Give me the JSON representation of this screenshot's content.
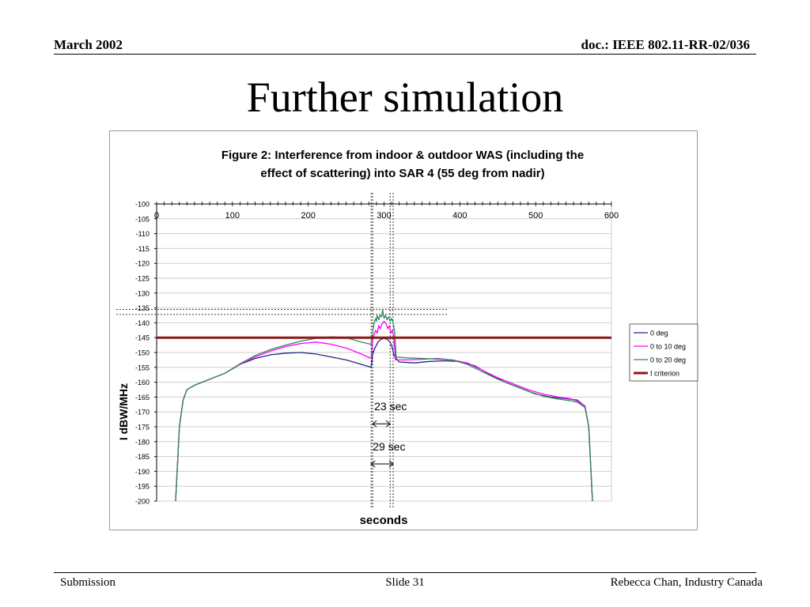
{
  "header": {
    "date": "March 2002",
    "doc": "doc.: IEEE 802.11-RR-02/036"
  },
  "slide": {
    "title": "Further simulation"
  },
  "footer": {
    "submission": "Submission",
    "slide_number": "Slide 31",
    "author": "Rebecca Chan, Industry Canada"
  },
  "chart_data": {
    "type": "line",
    "title_line1": "Figure 2:  Interference from indoor & outdoor WAS (including the",
    "title_line2": "effect of scattering) into SAR 4 (55 deg from nadir)",
    "xlabel": "seconds",
    "ylabel": "I dBW/MHz",
    "xlim": [
      0,
      600
    ],
    "ylim": [
      -200,
      -100
    ],
    "x_ticks": [
      "0",
      "100",
      "200",
      "300",
      "400",
      "500",
      "600"
    ],
    "y_ticks": [
      "-100",
      "-105",
      "-110",
      "-115",
      "-120",
      "-125",
      "-130",
      "-135",
      "-140",
      "-145",
      "-150",
      "-155",
      "-160",
      "-165",
      "-170",
      "-175",
      "-180",
      "-185",
      "-190",
      "-195",
      "-200"
    ],
    "grid": true,
    "legend_position": "right",
    "series": [
      {
        "name": "0 deg",
        "color": "#1c2a7a",
        "points": [
          [
            25,
            -200
          ],
          [
            30,
            -175
          ],
          [
            35,
            -166
          ],
          [
            40,
            -162.5
          ],
          [
            50,
            -161
          ],
          [
            70,
            -159
          ],
          [
            90,
            -157
          ],
          [
            110,
            -154
          ],
          [
            130,
            -152
          ],
          [
            150,
            -150.8
          ],
          [
            170,
            -150.2
          ],
          [
            190,
            -150
          ],
          [
            210,
            -150.5
          ],
          [
            230,
            -151.5
          ],
          [
            250,
            -152.5
          ],
          [
            270,
            -154
          ],
          [
            283,
            -155
          ],
          [
            285,
            -150.5
          ],
          [
            288,
            -148.5
          ],
          [
            292,
            -146.5
          ],
          [
            296,
            -145.5
          ],
          [
            300,
            -145.3
          ],
          [
            304,
            -145.5
          ],
          [
            308,
            -146.5
          ],
          [
            311,
            -148.5
          ],
          [
            313,
            -151
          ],
          [
            320,
            -153.2
          ],
          [
            340,
            -153.5
          ],
          [
            360,
            -153
          ],
          [
            380,
            -152.8
          ],
          [
            400,
            -153
          ],
          [
            420,
            -154.5
          ],
          [
            440,
            -157.5
          ],
          [
            460,
            -160
          ],
          [
            480,
            -162
          ],
          [
            500,
            -164
          ],
          [
            520,
            -165
          ],
          [
            540,
            -165.5
          ],
          [
            555,
            -166
          ],
          [
            565,
            -168
          ],
          [
            570,
            -175
          ],
          [
            575,
            -200
          ]
        ]
      },
      {
        "name": "0 to 10 deg",
        "color": "#ff00ff",
        "points": [
          [
            25,
            -200
          ],
          [
            30,
            -175
          ],
          [
            35,
            -166
          ],
          [
            40,
            -162.5
          ],
          [
            50,
            -161
          ],
          [
            70,
            -159
          ],
          [
            90,
            -157
          ],
          [
            110,
            -154
          ],
          [
            130,
            -151.5
          ],
          [
            150,
            -149.5
          ],
          [
            170,
            -148
          ],
          [
            190,
            -147
          ],
          [
            210,
            -146.5
          ],
          [
            230,
            -147.2
          ],
          [
            250,
            -148.5
          ],
          [
            270,
            -150.5
          ],
          [
            283,
            -152
          ],
          [
            285,
            -146
          ],
          [
            287,
            -144
          ],
          [
            289,
            -142.5
          ],
          [
            291,
            -143.5
          ],
          [
            293,
            -141
          ],
          [
            295,
            -142
          ],
          [
            297,
            -140.5
          ],
          [
            300,
            -139.5
          ],
          [
            303,
            -140.5
          ],
          [
            305,
            -142
          ],
          [
            307,
            -141
          ],
          [
            309,
            -143.5
          ],
          [
            311,
            -142.5
          ],
          [
            313,
            -145
          ],
          [
            315,
            -152.5
          ],
          [
            330,
            -152.5
          ],
          [
            350,
            -152.3
          ],
          [
            370,
            -152
          ],
          [
            390,
            -152.5
          ],
          [
            410,
            -153.5
          ],
          [
            430,
            -156
          ],
          [
            450,
            -158.5
          ],
          [
            470,
            -160.5
          ],
          [
            490,
            -162.5
          ],
          [
            510,
            -164
          ],
          [
            530,
            -165
          ],
          [
            545,
            -165.5
          ],
          [
            555,
            -166.3
          ],
          [
            565,
            -168
          ],
          [
            570,
            -175
          ],
          [
            575,
            -200
          ]
        ]
      },
      {
        "name": "0 to 20 deg",
        "color": "#2e8b57",
        "points": [
          [
            25,
            -200
          ],
          [
            30,
            -175
          ],
          [
            35,
            -166
          ],
          [
            40,
            -162.5
          ],
          [
            50,
            -161
          ],
          [
            70,
            -159
          ],
          [
            90,
            -157
          ],
          [
            110,
            -153.8
          ],
          [
            130,
            -151
          ],
          [
            150,
            -149
          ],
          [
            170,
            -147.5
          ],
          [
            190,
            -146.2
          ],
          [
            210,
            -145.2
          ],
          [
            230,
            -144.7
          ],
          [
            250,
            -145
          ],
          [
            270,
            -146.5
          ],
          [
            283,
            -147.3
          ],
          [
            285,
            -143
          ],
          [
            287,
            -140
          ],
          [
            289,
            -138.5
          ],
          [
            290,
            -139.5
          ],
          [
            291,
            -137.5
          ],
          [
            293,
            -139
          ],
          [
            295,
            -137.5
          ],
          [
            297,
            -138
          ],
          [
            298,
            -135.5
          ],
          [
            299,
            -137
          ],
          [
            300,
            -138.5
          ],
          [
            302,
            -137.5
          ],
          [
            304,
            -139
          ],
          [
            306,
            -138
          ],
          [
            308,
            -139.5
          ],
          [
            310,
            -138.5
          ],
          [
            312,
            -140
          ],
          [
            314,
            -143
          ],
          [
            316,
            -151.5
          ],
          [
            330,
            -151.8
          ],
          [
            350,
            -152
          ],
          [
            370,
            -152.2
          ],
          [
            390,
            -152.5
          ],
          [
            410,
            -154
          ],
          [
            430,
            -156.5
          ],
          [
            450,
            -159
          ],
          [
            470,
            -161
          ],
          [
            490,
            -163
          ],
          [
            510,
            -164.7
          ],
          [
            530,
            -165.7
          ],
          [
            545,
            -166.2
          ],
          [
            555,
            -166.7
          ],
          [
            565,
            -168.5
          ],
          [
            570,
            -175
          ],
          [
            575,
            -200
          ]
        ]
      },
      {
        "name": "I criterion",
        "color": "#8b1a1a",
        "points": [
          [
            0,
            -145
          ],
          [
            600,
            -145
          ]
        ]
      }
    ],
    "annotations": [
      {
        "text": "23 sec",
        "x_start": 285,
        "x_end": 308,
        "y": -174
      },
      {
        "text": "29 sec",
        "x_start": 283,
        "x_end": 312,
        "y": -187.5
      }
    ],
    "reference_lines": {
      "horizontal_y": [
        -135.5,
        -137.2
      ],
      "vertical_x": [
        283,
        285,
        308,
        312
      ]
    }
  }
}
